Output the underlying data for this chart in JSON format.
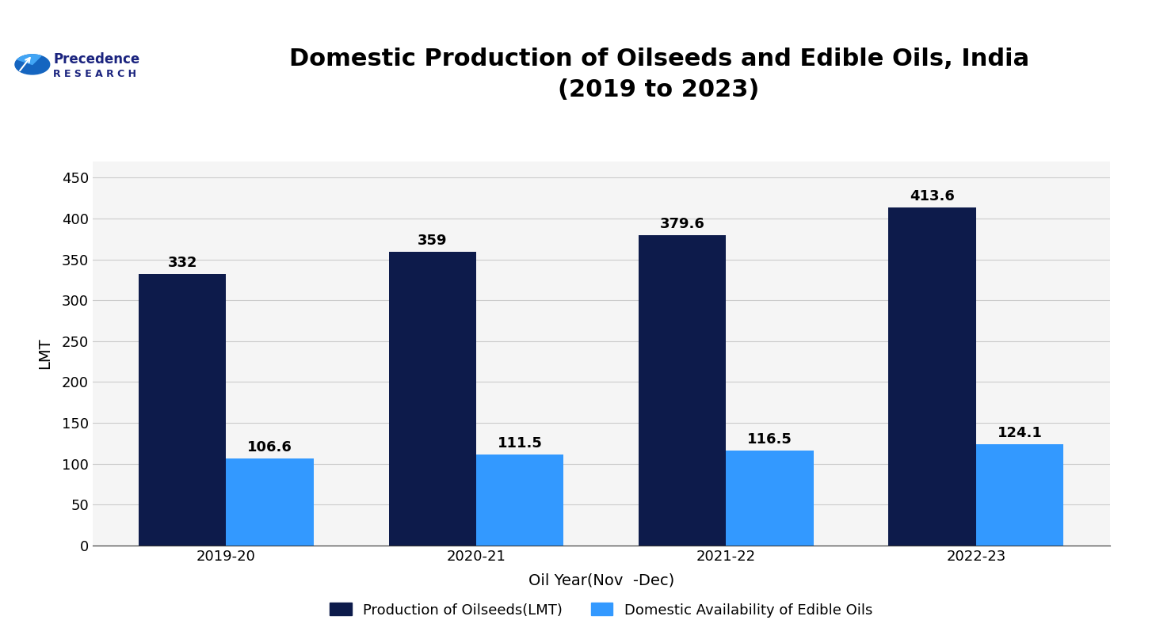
{
  "title": "Domestic Production of Oilseeds and Edible Oils, India\n(2019 to 2023)",
  "xlabel": "Oil Year(Nov  -Dec)",
  "ylabel": "LMT",
  "categories": [
    "2019-20",
    "2020-21",
    "2021-22",
    "2022-23"
  ],
  "series1_label": "Production of Oilseeds(LMT)",
  "series2_label": "Domestic Availability of Edible Oils",
  "series1_values": [
    332,
    359,
    379.6,
    413.6
  ],
  "series2_values": [
    106.6,
    111.5,
    116.5,
    124.1
  ],
  "series1_color": "#0d1b4b",
  "series2_color": "#3399ff",
  "ylim": [
    0,
    470
  ],
  "yticks": [
    0,
    50,
    100,
    150,
    200,
    250,
    300,
    350,
    400,
    450
  ],
  "bar_width": 0.35,
  "background_color": "#ffffff",
  "plot_bg_color": "#f5f5f5",
  "title_fontsize": 22,
  "axis_label_fontsize": 14,
  "tick_fontsize": 13,
  "annotation_fontsize": 13,
  "legend_fontsize": 13,
  "grid_color": "#cccccc",
  "header_line_color": "#4472c4",
  "logo_text_color": "#1a237e",
  "logo_research_color": "#1a237e",
  "logo_globe_color": "#1565c0",
  "logo_globe_accent": "#42a5f5"
}
